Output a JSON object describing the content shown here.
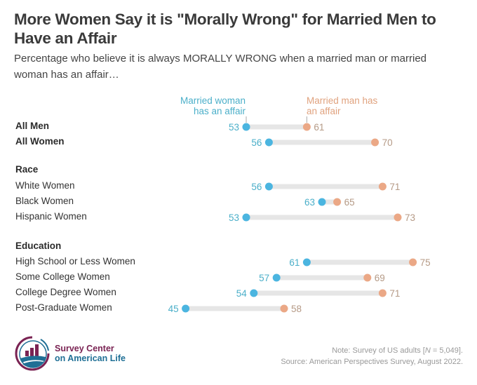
{
  "title": "More Women Say it is \"Morally Wrong\" for Married Men to Have an Affair",
  "subtitle": "Percentage who believe it is always MORALLY WRONG when a married man or married woman has an affair…",
  "chart_data": {
    "type": "dumbbell",
    "title": "More Women Say it is \"Morally Wrong\" for Married Men to Have an Affair",
    "subtitle": "Percentage who believe it is always MORALLY WRONG when a married man or married woman has an affair…",
    "series": [
      {
        "name": "Married woman has an affair",
        "color": "#4bb5e0"
      },
      {
        "name": "Married man has an affair",
        "color": "#eba886"
      }
    ],
    "legend_woman": "Married woman has an affair",
    "legend_man": "Married man has an affair",
    "legend_woman_lines": [
      "Married woman",
      "has an affair"
    ],
    "legend_man_lines": [
      "Married man has",
      "an affair"
    ],
    "sections": [
      {
        "label": null,
        "rows": [
          {
            "label": "All Men",
            "bold": true,
            "woman": 53,
            "man": 61
          },
          {
            "label": "All Women",
            "bold": true,
            "woman": 56,
            "man": 70
          }
        ]
      },
      {
        "label": "Race",
        "rows": [
          {
            "label": "White Women",
            "bold": false,
            "woman": 56,
            "man": 71
          },
          {
            "label": "Black Women",
            "bold": false,
            "woman": 63,
            "man": 65
          },
          {
            "label": "Hispanic Women",
            "bold": false,
            "woman": 53,
            "man": 73
          }
        ]
      },
      {
        "label": "Education",
        "rows": [
          {
            "label": "High School or Less Women",
            "bold": false,
            "woman": 61,
            "man": 75
          },
          {
            "label": "Some College Women",
            "bold": false,
            "woman": 57,
            "man": 69
          },
          {
            "label": "College Degree Women",
            "bold": false,
            "woman": 54,
            "man": 71
          },
          {
            "label": "Post-Graduate Women",
            "bold": false,
            "woman": 45,
            "man": 58
          }
        ]
      }
    ],
    "xlim": [
      45,
      75
    ],
    "colors": {
      "woman": "#4bb5e0",
      "man": "#eba886",
      "bar": "#e6e6e6",
      "woman_text": "#4bafc9",
      "man_text": "#b59a86"
    }
  },
  "logo": {
    "line1": "Survey Center",
    "line2": "on American Life"
  },
  "note": {
    "line1_prefix": "Note: Survey of US adults [",
    "line1_n": "N",
    "line1_suffix": " = 5,049].",
    "line2": "Source: American Perspectives Survey, August 2022."
  }
}
